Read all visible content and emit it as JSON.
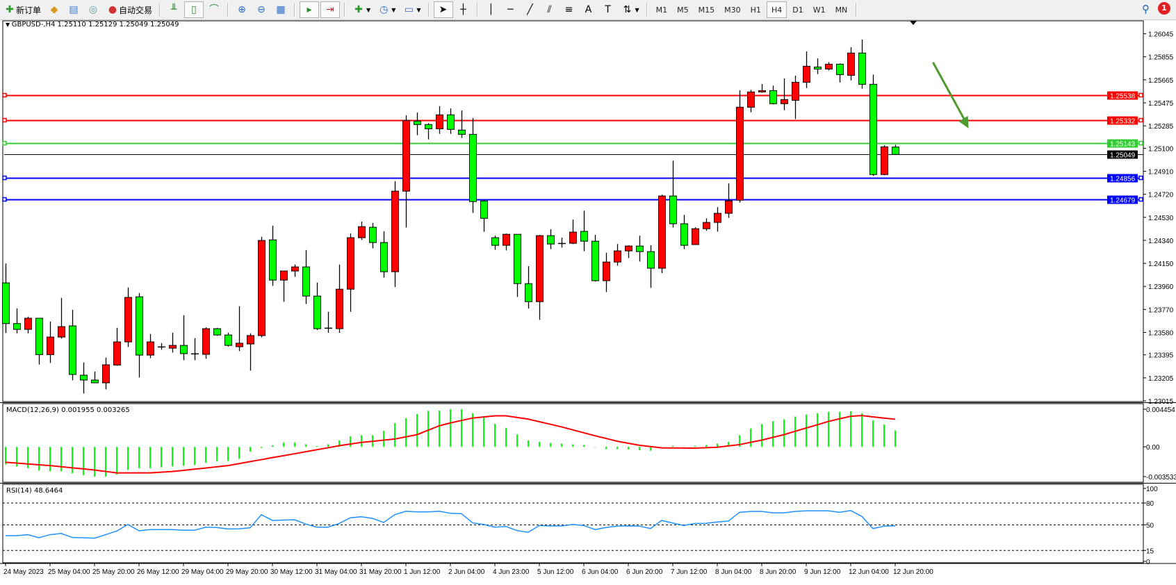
{
  "toolbar": {
    "new_order_label": "新订单",
    "auto_trading_label": "自动交易",
    "timeframes": [
      "M1",
      "M5",
      "M15",
      "M30",
      "H1",
      "H4",
      "D1",
      "W1",
      "MN"
    ],
    "selected_timeframe": "H4",
    "notification_count": "1"
  },
  "chart": {
    "header": "GBPUSD-,H4  1.25110 1.25129 1.25049 1.25049",
    "bull_color": "#ff0000",
    "bear_color": "#00ff00"
  },
  "chart_data": [
    {
      "type": "candlestick",
      "symbol": "GBPUSD-",
      "timeframe": "H4",
      "ylim": [
        1.23015,
        1.26045
      ],
      "y_ticks": [
        "1.26045",
        "1.25855",
        "1.25665",
        "1.25475",
        "1.25285",
        "1.25100",
        "1.24910",
        "1.24720",
        "1.24530",
        "1.24340",
        "1.24150",
        "1.23960",
        "1.23770",
        "1.23580",
        "1.23395",
        "1.23205",
        "1.23015"
      ],
      "x_tick_labels": [
        "24 May 2023",
        "25 May 04:00",
        "25 May 20:00",
        "26 May 12:00",
        "29 May 04:00",
        "29 May 20:00",
        "30 May 12:00",
        "31 May 04:00",
        "31 May 20:00",
        "1 Jun 12:00",
        "2 Jun 04:00",
        "4 Jun 23:00",
        "5 Jun 12:00",
        "6 Jun 04:00",
        "6 Jun 20:00",
        "7 Jun 12:00",
        "8 Jun 04:00",
        "8 Jun 20:00",
        "9 Jun 12:00",
        "12 Jun 04:00",
        "12 Jun 20:00"
      ],
      "bars_per_x_tick": 4,
      "ohlc": [
        [
          1.23989,
          1.24149,
          1.23576,
          1.23653
        ],
        [
          1.23653,
          1.23779,
          1.23573,
          1.23605
        ],
        [
          1.23605,
          1.2371,
          1.23573,
          1.23697
        ],
        [
          1.23697,
          1.23697,
          1.23315,
          1.23397
        ],
        [
          1.23397,
          1.2367,
          1.23328,
          1.23542
        ],
        [
          1.23542,
          1.23865,
          1.23529,
          1.23628
        ],
        [
          1.23634,
          1.23767,
          1.23185,
          1.23233
        ],
        [
          1.23227,
          1.23332,
          1.23076,
          1.23187
        ],
        [
          1.23187,
          1.23258,
          1.23164,
          1.23164
        ],
        [
          1.23164,
          1.23372,
          1.2311,
          1.23313
        ],
        [
          1.23311,
          1.23618,
          1.23305,
          1.23502
        ],
        [
          1.23502,
          1.23951,
          1.2346,
          1.23869
        ],
        [
          1.23874,
          1.23905,
          1.23208,
          1.23393
        ],
        [
          1.23393,
          1.23567,
          1.23368,
          1.23502
        ],
        [
          1.2346,
          1.23492,
          1.23437,
          1.2346
        ],
        [
          1.2345,
          1.23578,
          1.23414,
          1.23473
        ],
        [
          1.23473,
          1.23722,
          1.23351,
          1.23405
        ],
        [
          1.23403,
          1.23533,
          1.23351,
          1.23403
        ],
        [
          1.23399,
          1.23622,
          1.23363,
          1.23611
        ],
        [
          1.23611,
          1.23618,
          1.23552,
          1.23559
        ],
        [
          1.23559,
          1.23578,
          1.23464,
          1.23473
        ],
        [
          1.23462,
          1.23796,
          1.23426,
          1.23491
        ],
        [
          1.23485,
          1.23573,
          1.23265,
          1.23554
        ],
        [
          1.23554,
          1.24369,
          1.2354,
          1.24339
        ],
        [
          1.24344,
          1.24461,
          1.23964,
          1.24012
        ],
        [
          1.24012,
          1.24087,
          1.23833,
          1.24087
        ],
        [
          1.24087,
          1.2414,
          1.24039,
          1.24121
        ],
        [
          1.24121,
          1.2426,
          1.23815,
          1.2388
        ],
        [
          1.2388,
          1.23991,
          1.236,
          1.23611
        ],
        [
          1.23615,
          1.2375,
          1.23577,
          1.23615
        ],
        [
          1.23611,
          1.2414,
          1.23577,
          1.23937
        ],
        [
          1.23937,
          1.24398,
          1.2375,
          1.24362
        ],
        [
          1.24362,
          1.24495,
          1.24343,
          1.24453
        ],
        [
          1.24448,
          1.24484,
          1.24274,
          1.24322
        ],
        [
          1.24322,
          1.24415,
          1.24033,
          1.24081
        ],
        [
          1.24081,
          1.24828,
          1.23955,
          1.24746
        ],
        [
          1.24746,
          1.25372,
          1.24446,
          1.2533
        ],
        [
          1.25324,
          1.25395,
          1.25208,
          1.25296
        ],
        [
          1.25296,
          1.25307,
          1.25173,
          1.25261
        ],
        [
          1.25261,
          1.25447,
          1.25219,
          1.25376
        ],
        [
          1.25376,
          1.25429,
          1.25219,
          1.25256
        ],
        [
          1.2525,
          1.25412,
          1.25185,
          1.25215
        ],
        [
          1.25215,
          1.25349,
          1.24566,
          1.2466
        ],
        [
          1.24665,
          1.24675,
          1.24411,
          1.24522
        ],
        [
          1.24362,
          1.24379,
          1.24262,
          1.24299
        ],
        [
          1.24299,
          1.24396,
          1.24257,
          1.2439
        ],
        [
          1.2439,
          1.2439,
          1.23873,
          1.23983
        ],
        [
          1.23983,
          1.24127,
          1.23777,
          1.23834
        ],
        [
          1.23834,
          1.24385,
          1.23684,
          1.24379
        ],
        [
          1.24379,
          1.24431,
          1.24268,
          1.2431
        ],
        [
          1.24314,
          1.24362,
          1.2428,
          1.24314
        ],
        [
          1.24316,
          1.24511,
          1.24309,
          1.24408
        ],
        [
          1.24414,
          1.24585,
          1.24251,
          1.24333
        ],
        [
          1.24333,
          1.24385,
          1.24,
          1.24007
        ],
        [
          1.24007,
          1.24238,
          1.23913,
          1.24161
        ],
        [
          1.24161,
          1.2431,
          1.24131,
          1.24253
        ],
        [
          1.24253,
          1.24299,
          1.24194,
          1.24293
        ],
        [
          1.24293,
          1.24379,
          1.24165,
          1.24247
        ],
        [
          1.24247,
          1.24299,
          1.23948,
          1.2411
        ],
        [
          1.2411,
          1.24717,
          1.2407,
          1.24706
        ],
        [
          1.24706,
          1.24998,
          1.24446,
          1.24477
        ],
        [
          1.24477,
          1.24551,
          1.24268,
          1.24299
        ],
        [
          1.24305,
          1.24448,
          1.24305,
          1.24436
        ],
        [
          1.24436,
          1.24522,
          1.24419,
          1.24488
        ],
        [
          1.24488,
          1.24614,
          1.24412,
          1.24563
        ],
        [
          1.24563,
          1.24811,
          1.24526,
          1.24666
        ],
        [
          1.24671,
          1.25578,
          1.24652,
          1.25439
        ],
        [
          1.25439,
          1.25582,
          1.25397,
          1.25565
        ],
        [
          1.25565,
          1.2563,
          1.25559,
          1.25576
        ],
        [
          1.25576,
          1.25617,
          1.25462,
          1.25468
        ],
        [
          1.25468,
          1.25676,
          1.25414,
          1.25502
        ],
        [
          1.25496,
          1.25699,
          1.25341,
          1.25645
        ],
        [
          1.25645,
          1.25899,
          1.25597,
          1.25777
        ],
        [
          1.25771,
          1.25842,
          1.25712,
          1.25754
        ],
        [
          1.25754,
          1.25811,
          1.25743,
          1.25794
        ],
        [
          1.25794,
          1.258,
          1.25643,
          1.25708
        ],
        [
          1.25702,
          1.25934,
          1.2566,
          1.25886
        ],
        [
          1.25886,
          1.25997,
          1.25592,
          1.25628
        ],
        [
          1.25628,
          1.25708,
          1.24872,
          1.24883
        ],
        [
          1.24883,
          1.25124,
          1.24877,
          1.25112
        ],
        [
          1.2511,
          1.25129,
          1.25049,
          1.25049
        ]
      ],
      "horizontal_levels": [
        {
          "price": "1.25538",
          "color": "#ff0000"
        },
        {
          "price": "1.25332",
          "color": "#ff0000"
        },
        {
          "price": "1.25143",
          "color": "#33cc33"
        },
        {
          "price": "1.24856",
          "color": "#0000ff"
        },
        {
          "price": "1.24679",
          "color": "#0000ff"
        }
      ],
      "bid_line": {
        "price": "1.25049",
        "color": "#000000"
      },
      "annotation_arrow": {
        "color": "#4f9a2f",
        "direction": "down-right",
        "from": {
          "bar": 83.4,
          "price": 1.25809
        },
        "to": {
          "bar": 86.6,
          "price": 1.25264
        }
      }
    },
    {
      "type": "bar+line",
      "title": "MACD(12,26,9) 0.001955 0.003265",
      "ylim": [
        -0.003533,
        0.004454
      ],
      "y_ticks": [
        "0.004454",
        "0.00",
        "-0.003533"
      ],
      "histogram_color": "#00ff00",
      "signal_color": "#ff0000",
      "macd": [
        -0.0021,
        -0.00236,
        -0.00254,
        -0.00283,
        -0.00291,
        -0.00291,
        -0.00314,
        -0.00335,
        -0.00354,
        -0.00354,
        -0.0033,
        -0.00275,
        -0.00254,
        -0.00254,
        -0.00244,
        -0.00231,
        -0.00225,
        -0.00217,
        -0.00189,
        -0.0017,
        -0.00168,
        -0.00144,
        -0.00058,
        -0.00013,
        0.00018,
        0.00052,
        0.00052,
        0.00031,
        0.0001,
        0.00031,
        0.00076,
        0.00124,
        0.00139,
        0.00139,
        0.00189,
        0.0028,
        0.00341,
        0.0039,
        0.00427,
        0.0043,
        0.00445,
        0.00445,
        0.00398,
        0.00346,
        0.00273,
        0.00225,
        0.00147,
        0.00076,
        0.0006,
        0.00045,
        0.00037,
        0.00029,
        0.00021,
        -5e-05,
        -0.00029,
        -0.00029,
        -0.00031,
        -0.00039,
        -0.00047,
        0.0,
        0.00013,
        5e-05,
        0.00013,
        0.00021,
        0.00037,
        0.0006,
        0.00139,
        0.00217,
        0.00272,
        0.00304,
        0.00327,
        0.00359,
        0.00382,
        0.00398,
        0.00414,
        0.00414,
        0.00422,
        0.00398,
        0.00312,
        0.00265,
        0.001955
      ],
      "signal": [
        -0.00183,
        -0.00193,
        -0.00203,
        -0.00213,
        -0.00223,
        -0.00236,
        -0.00249,
        -0.00262,
        -0.00275,
        -0.00292,
        -0.00309,
        -0.00309,
        -0.00309,
        -0.00309,
        -0.00301,
        -0.00293,
        -0.00279,
        -0.00265,
        -0.00251,
        -0.00237,
        -0.00223,
        -0.00199,
        -0.00175,
        -0.00152,
        -0.00128,
        -0.00105,
        -0.00082,
        -0.00058,
        -0.00034,
        -0.00011,
        0.00013,
        0.00033,
        0.00052,
        0.00065,
        0.00079,
        0.00092,
        0.00118,
        0.00144,
        0.00197,
        0.00249,
        0.00283,
        0.00312,
        0.00341,
        0.00354,
        0.00367,
        0.00367,
        0.00348,
        0.00328,
        0.00297,
        0.00267,
        0.00236,
        0.00201,
        0.00166,
        0.00131,
        0.00099,
        0.00066,
        0.00042,
        0.00018,
        3e-05,
        -0.00013,
        -0.00014,
        -0.00015,
        -0.00016,
        -0.00011,
        -5e-05,
        0.00011,
        0.00026,
        0.00053,
        0.00079,
        0.00112,
        0.00144,
        0.00184,
        0.00223,
        0.00262,
        0.00301,
        0.00332,
        0.00362,
        0.0037,
        0.00355,
        0.0034,
        0.003265
      ]
    },
    {
      "type": "line",
      "title": "RSI(14) 48.6464",
      "ylim": [
        0,
        100
      ],
      "y_ticks": [
        "100",
        "80",
        "50",
        "15",
        "0"
      ],
      "levels": [
        80,
        50,
        15
      ],
      "line_color": "#1e90ff",
      "values": [
        35.2,
        35.2,
        36.6,
        32.4,
        36.6,
        38.3,
        32.7,
        32.4,
        31.8,
        36.6,
        41.6,
        50.6,
        41.9,
        43.6,
        43.6,
        43.6,
        42.7,
        42.7,
        46.9,
        46.4,
        44.4,
        44.7,
        46.1,
        64.0,
        56.1,
        56.7,
        57.0,
        51.1,
        46.9,
        46.9,
        52.0,
        59.8,
        61.2,
        58.9,
        53.4,
        64.0,
        68.7,
        67.9,
        67.9,
        68.7,
        65.9,
        65.4,
        52.8,
        50.6,
        46.9,
        47.8,
        42.2,
        39.9,
        49.2,
        48.6,
        48.6,
        50.6,
        49.2,
        43.6,
        46.4,
        48.3,
        48.6,
        48.3,
        45.0,
        56.1,
        52.5,
        49.2,
        52.0,
        52.2,
        53.9,
        55.3,
        67.3,
        68.4,
        68.4,
        66.5,
        66.5,
        68.4,
        69.3,
        69.3,
        69.3,
        67.3,
        69.6,
        61.7,
        45.0,
        48.3,
        48.6464
      ]
    }
  ]
}
